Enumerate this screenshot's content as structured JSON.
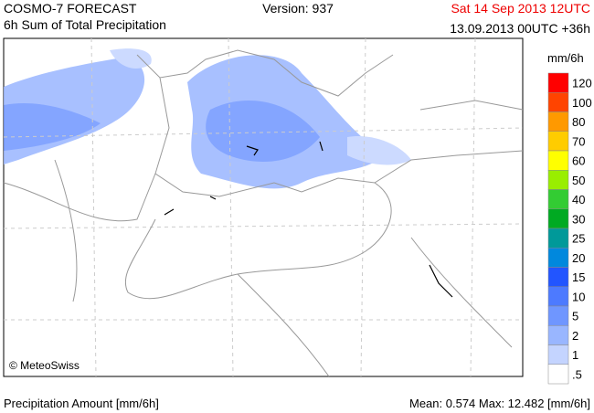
{
  "header": {
    "title": "COSMO-7 FORECAST",
    "subtitle": "6h Sum of Total Precipitation",
    "version": "Version: 937",
    "valid_time": "Sat 14 Sep 2013 12UTC",
    "run_time": "13.09.2013 00UTC +36h"
  },
  "map": {
    "copyright": "© MeteoSwiss"
  },
  "legend": {
    "unit": "mm/6h",
    "items": [
      {
        "label": "120",
        "color": "#ff0000"
      },
      {
        "label": "100",
        "color": "#ff4400"
      },
      {
        "label": "80",
        "color": "#ff9900"
      },
      {
        "label": "70",
        "color": "#ffcc00"
      },
      {
        "label": "60",
        "color": "#ffff00"
      },
      {
        "label": "50",
        "color": "#99ee00"
      },
      {
        "label": "40",
        "color": "#33cc33"
      },
      {
        "label": "30",
        "color": "#00aa22"
      },
      {
        "label": "25",
        "color": "#009999"
      },
      {
        "label": "20",
        "color": "#0088dd"
      },
      {
        "label": "15",
        "color": "#2255ff"
      },
      {
        "label": "10",
        "color": "#4d7aff"
      },
      {
        "label": "5",
        "color": "#6f96ff"
      },
      {
        "label": "2",
        "color": "#99b6ff"
      },
      {
        "label": "1",
        "color": "#c4d4ff"
      },
      {
        "label": ".5",
        "color": "#ffffff"
      }
    ]
  },
  "footer": {
    "left": "Precipitation Amount [mm/6h]",
    "right": "Mean:  0.574 Max:  12.482 [mm/6h]"
  }
}
